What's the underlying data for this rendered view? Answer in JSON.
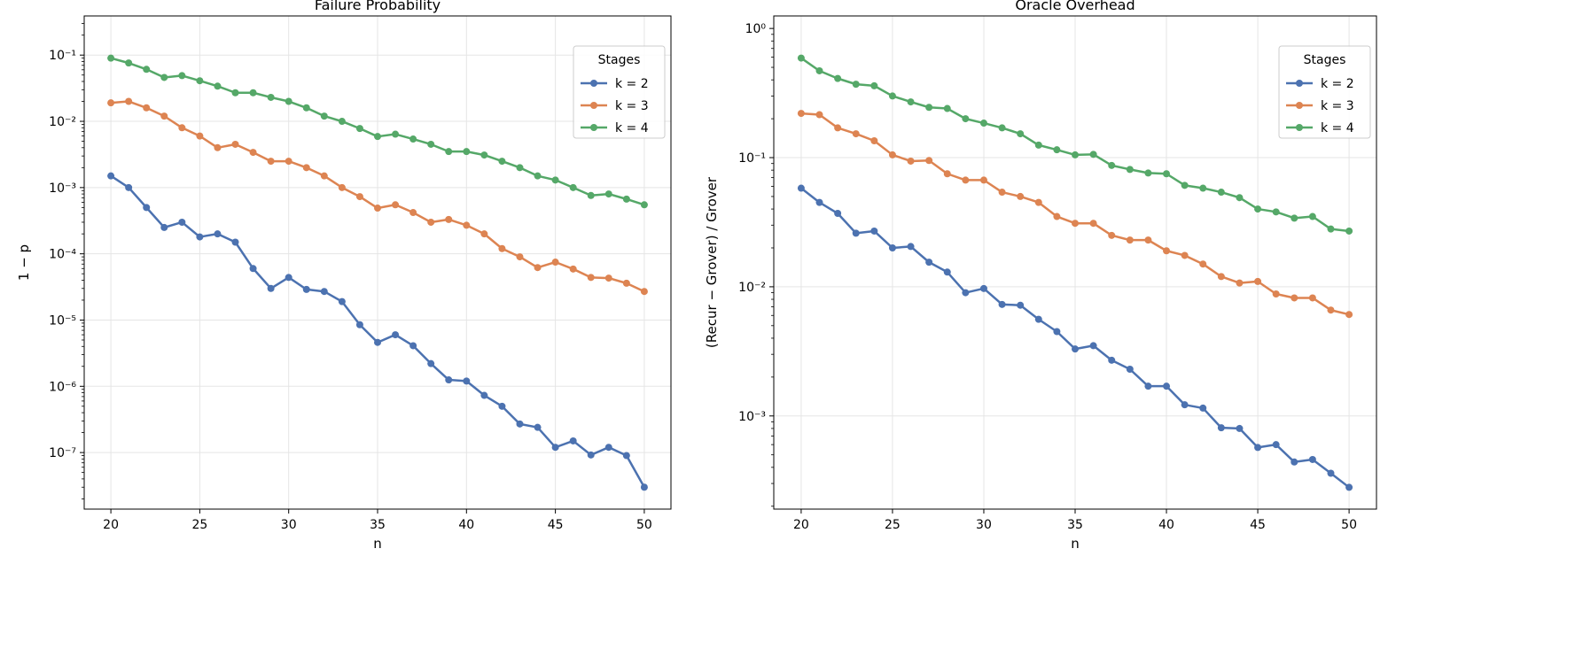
{
  "colors": {
    "k2": "#4c72b0",
    "k3": "#dd8452",
    "k4": "#55a868"
  },
  "chart_data": [
    {
      "type": "line",
      "title": "Failure Probability",
      "xlabel": "n",
      "ylabel": "1 − p",
      "yscale": "log",
      "xlim": [
        18.5,
        51.5
      ],
      "ylim": [
        1.4e-08,
        0.39
      ],
      "xticks": [
        20,
        25,
        30,
        35,
        40,
        45,
        50
      ],
      "yticks": [
        -7,
        -6,
        -5,
        -4,
        -3,
        -2,
        -1
      ],
      "grid": true,
      "legend": {
        "title": "Stages",
        "placement": "top-right"
      },
      "x": [
        20,
        21,
        22,
        23,
        24,
        25,
        26,
        27,
        28,
        29,
        30,
        31,
        32,
        33,
        34,
        35,
        36,
        37,
        38,
        39,
        40,
        41,
        42,
        43,
        44,
        45,
        46,
        47,
        48,
        49,
        50
      ],
      "series": [
        {
          "name": "k = 2",
          "color_key": "k2",
          "values": [
            0.0015,
            0.001,
            0.0005,
            0.00025,
            0.0003,
            0.00018,
            0.0002,
            0.00015,
            6e-05,
            3e-05,
            4.4e-05,
            2.9e-05,
            2.7e-05,
            1.9e-05,
            8.5e-06,
            4.6e-06,
            6e-06,
            4.1e-06,
            2.2e-06,
            1.25e-06,
            1.2e-06,
            7.3e-07,
            5e-07,
            2.7e-07,
            2.4e-07,
            1.2e-07,
            1.5e-07,
            9.2e-08,
            1.2e-07,
            9e-08,
            3e-08
          ]
        },
        {
          "name": "k = 3",
          "color_key": "k3",
          "values": [
            0.019,
            0.02,
            0.016,
            0.012,
            0.008,
            0.006,
            0.004,
            0.0045,
            0.0034,
            0.0025,
            0.0025,
            0.002,
            0.0015,
            0.001,
            0.00073,
            0.00049,
            0.00055,
            0.00042,
            0.0003,
            0.00033,
            0.00027,
            0.0002,
            0.00012,
            9e-05,
            6.2e-05,
            7.5e-05,
            5.9e-05,
            4.4e-05,
            4.3e-05,
            3.6e-05,
            2.7e-05
          ]
        },
        {
          "name": "k = 4",
          "color_key": "k4",
          "values": [
            0.09,
            0.076,
            0.061,
            0.046,
            0.049,
            0.041,
            0.034,
            0.027,
            0.027,
            0.023,
            0.02,
            0.016,
            0.012,
            0.01,
            0.0078,
            0.0059,
            0.0064,
            0.0054,
            0.0045,
            0.0035,
            0.0035,
            0.0031,
            0.0025,
            0.002,
            0.0015,
            0.0013,
            0.001,
            0.00076,
            0.0008,
            0.00067,
            0.00055
          ]
        }
      ]
    },
    {
      "type": "line",
      "title": "Oracle Overhead",
      "xlabel": "n",
      "ylabel": "(Recur − Grover) / Grover",
      "yscale": "log",
      "xlim": [
        18.5,
        51.5
      ],
      "ylim": [
        0.00019,
        1.25
      ],
      "xticks": [
        20,
        25,
        30,
        35,
        40,
        45,
        50
      ],
      "yticks": [
        -3,
        -2,
        -1
      ],
      "grid": true,
      "legend": {
        "title": "Stages",
        "placement": "top-right"
      },
      "x": [
        20,
        21,
        22,
        23,
        24,
        25,
        26,
        27,
        28,
        29,
        30,
        31,
        32,
        33,
        34,
        35,
        36,
        37,
        38,
        39,
        40,
        41,
        42,
        43,
        44,
        45,
        46,
        47,
        48,
        49,
        50
      ],
      "series": [
        {
          "name": "k = 2",
          "color_key": "k2",
          "values": [
            0.058,
            0.045,
            0.037,
            0.026,
            0.027,
            0.02,
            0.0205,
            0.0155,
            0.013,
            0.009,
            0.0097,
            0.0073,
            0.0072,
            0.0056,
            0.0045,
            0.0033,
            0.0035,
            0.0027,
            0.0023,
            0.0017,
            0.0017,
            0.00122,
            0.00115,
            0.00081,
            0.0008,
            0.00057,
            0.0006,
            0.00044,
            0.00046,
            0.00036,
            0.00028
          ]
        },
        {
          "name": "k = 3",
          "color_key": "k3",
          "values": [
            0.22,
            0.215,
            0.17,
            0.153,
            0.135,
            0.105,
            0.094,
            0.095,
            0.075,
            0.067,
            0.067,
            0.054,
            0.05,
            0.045,
            0.035,
            0.031,
            0.031,
            0.025,
            0.023,
            0.023,
            0.019,
            0.0175,
            0.015,
            0.012,
            0.0107,
            0.011,
            0.0088,
            0.0082,
            0.0082,
            0.0066,
            0.0061
          ]
        },
        {
          "name": "k = 4",
          "color_key": "k4",
          "values": [
            0.59,
            0.47,
            0.41,
            0.37,
            0.36,
            0.3,
            0.27,
            0.245,
            0.24,
            0.2,
            0.185,
            0.17,
            0.153,
            0.125,
            0.115,
            0.105,
            0.106,
            0.087,
            0.081,
            0.076,
            0.075,
            0.061,
            0.058,
            0.054,
            0.049,
            0.04,
            0.038,
            0.034,
            0.035,
            0.028,
            0.027
          ]
        }
      ]
    }
  ]
}
